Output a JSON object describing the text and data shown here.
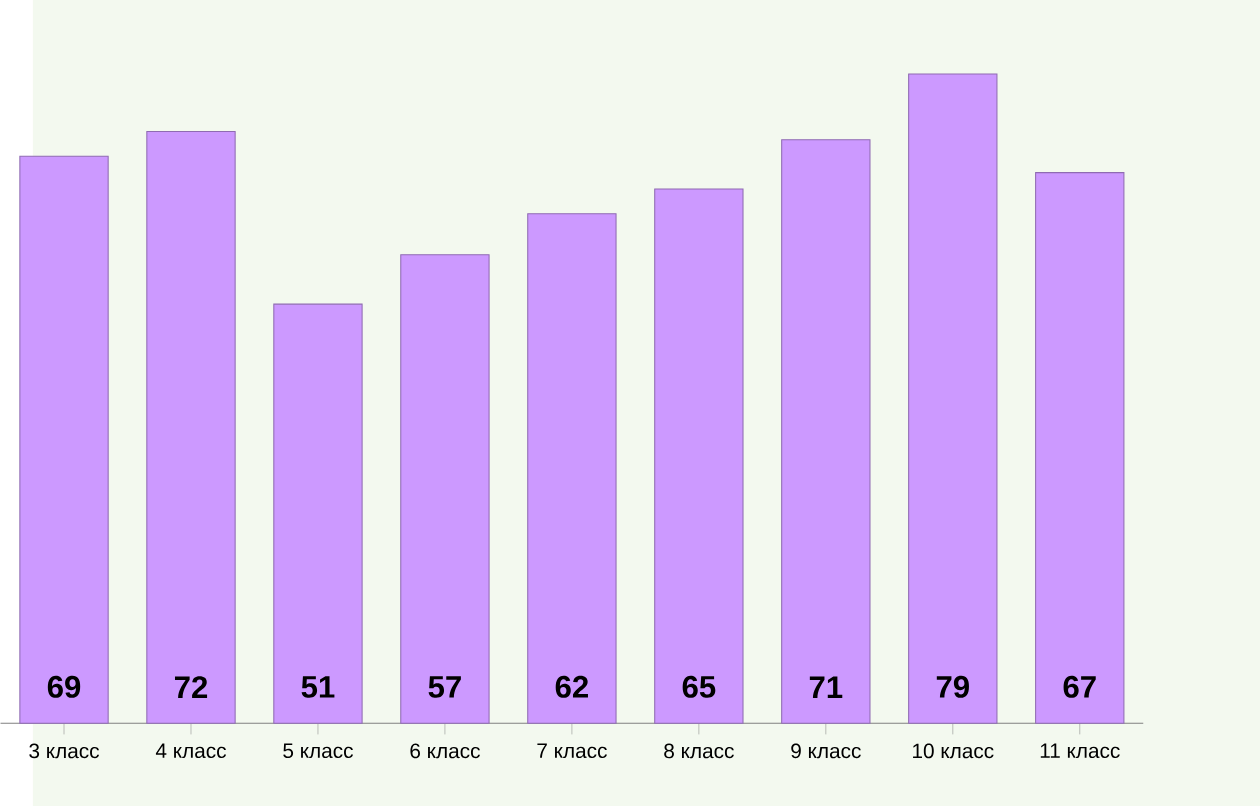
{
  "chart_data": {
    "type": "bar",
    "categories": [
      "3 класс",
      "4 класс",
      "5 класс",
      "6 класс",
      "7 класс",
      "8 класс",
      "9 класс",
      "10 класс",
      "11 класс"
    ],
    "values": [
      69,
      72,
      51,
      57,
      62,
      65,
      71,
      79,
      67
    ],
    "color": "#cc99ff",
    "data_labels": true
  }
}
